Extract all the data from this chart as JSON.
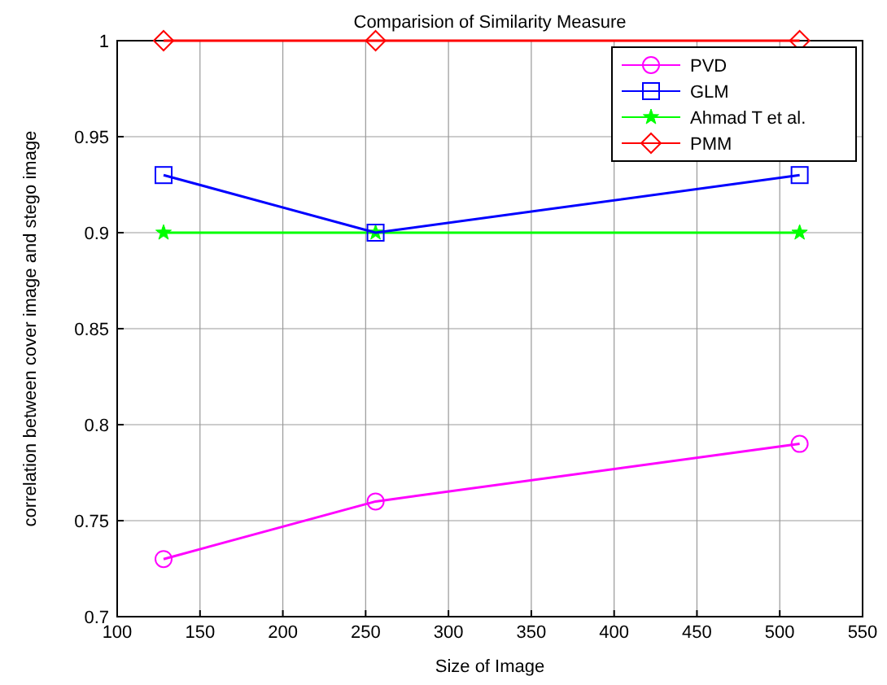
{
  "chart_data": {
    "type": "line",
    "title": "Comparision of Similarity Measure",
    "xlabel": "Size of Image",
    "ylabel": "correlation between cover image and stego image",
    "x": [
      128,
      256,
      512
    ],
    "series": [
      {
        "name": "PVD",
        "color": "#ff00ff",
        "marker": "circle",
        "values": [
          0.73,
          0.76,
          0.79
        ]
      },
      {
        "name": "GLM",
        "color": "#0000ff",
        "marker": "square",
        "values": [
          0.93,
          0.9,
          0.93
        ]
      },
      {
        "name": "Ahmad T et al.",
        "color": "#00ff00",
        "marker": "star",
        "values": [
          0.9,
          0.9,
          0.9
        ]
      },
      {
        "name": "PMM",
        "color": "#ff0000",
        "marker": "diamond",
        "values": [
          1,
          1,
          1
        ]
      }
    ],
    "xlim": [
      100,
      550
    ],
    "xticks": [
      100,
      150,
      200,
      250,
      300,
      350,
      400,
      450,
      500,
      550
    ],
    "ylim": [
      0.7,
      1
    ],
    "yticks": [
      0.7,
      0.75,
      0.8,
      0.85,
      0.9,
      0.95,
      1
    ],
    "grid": true,
    "legend": "top right"
  }
}
